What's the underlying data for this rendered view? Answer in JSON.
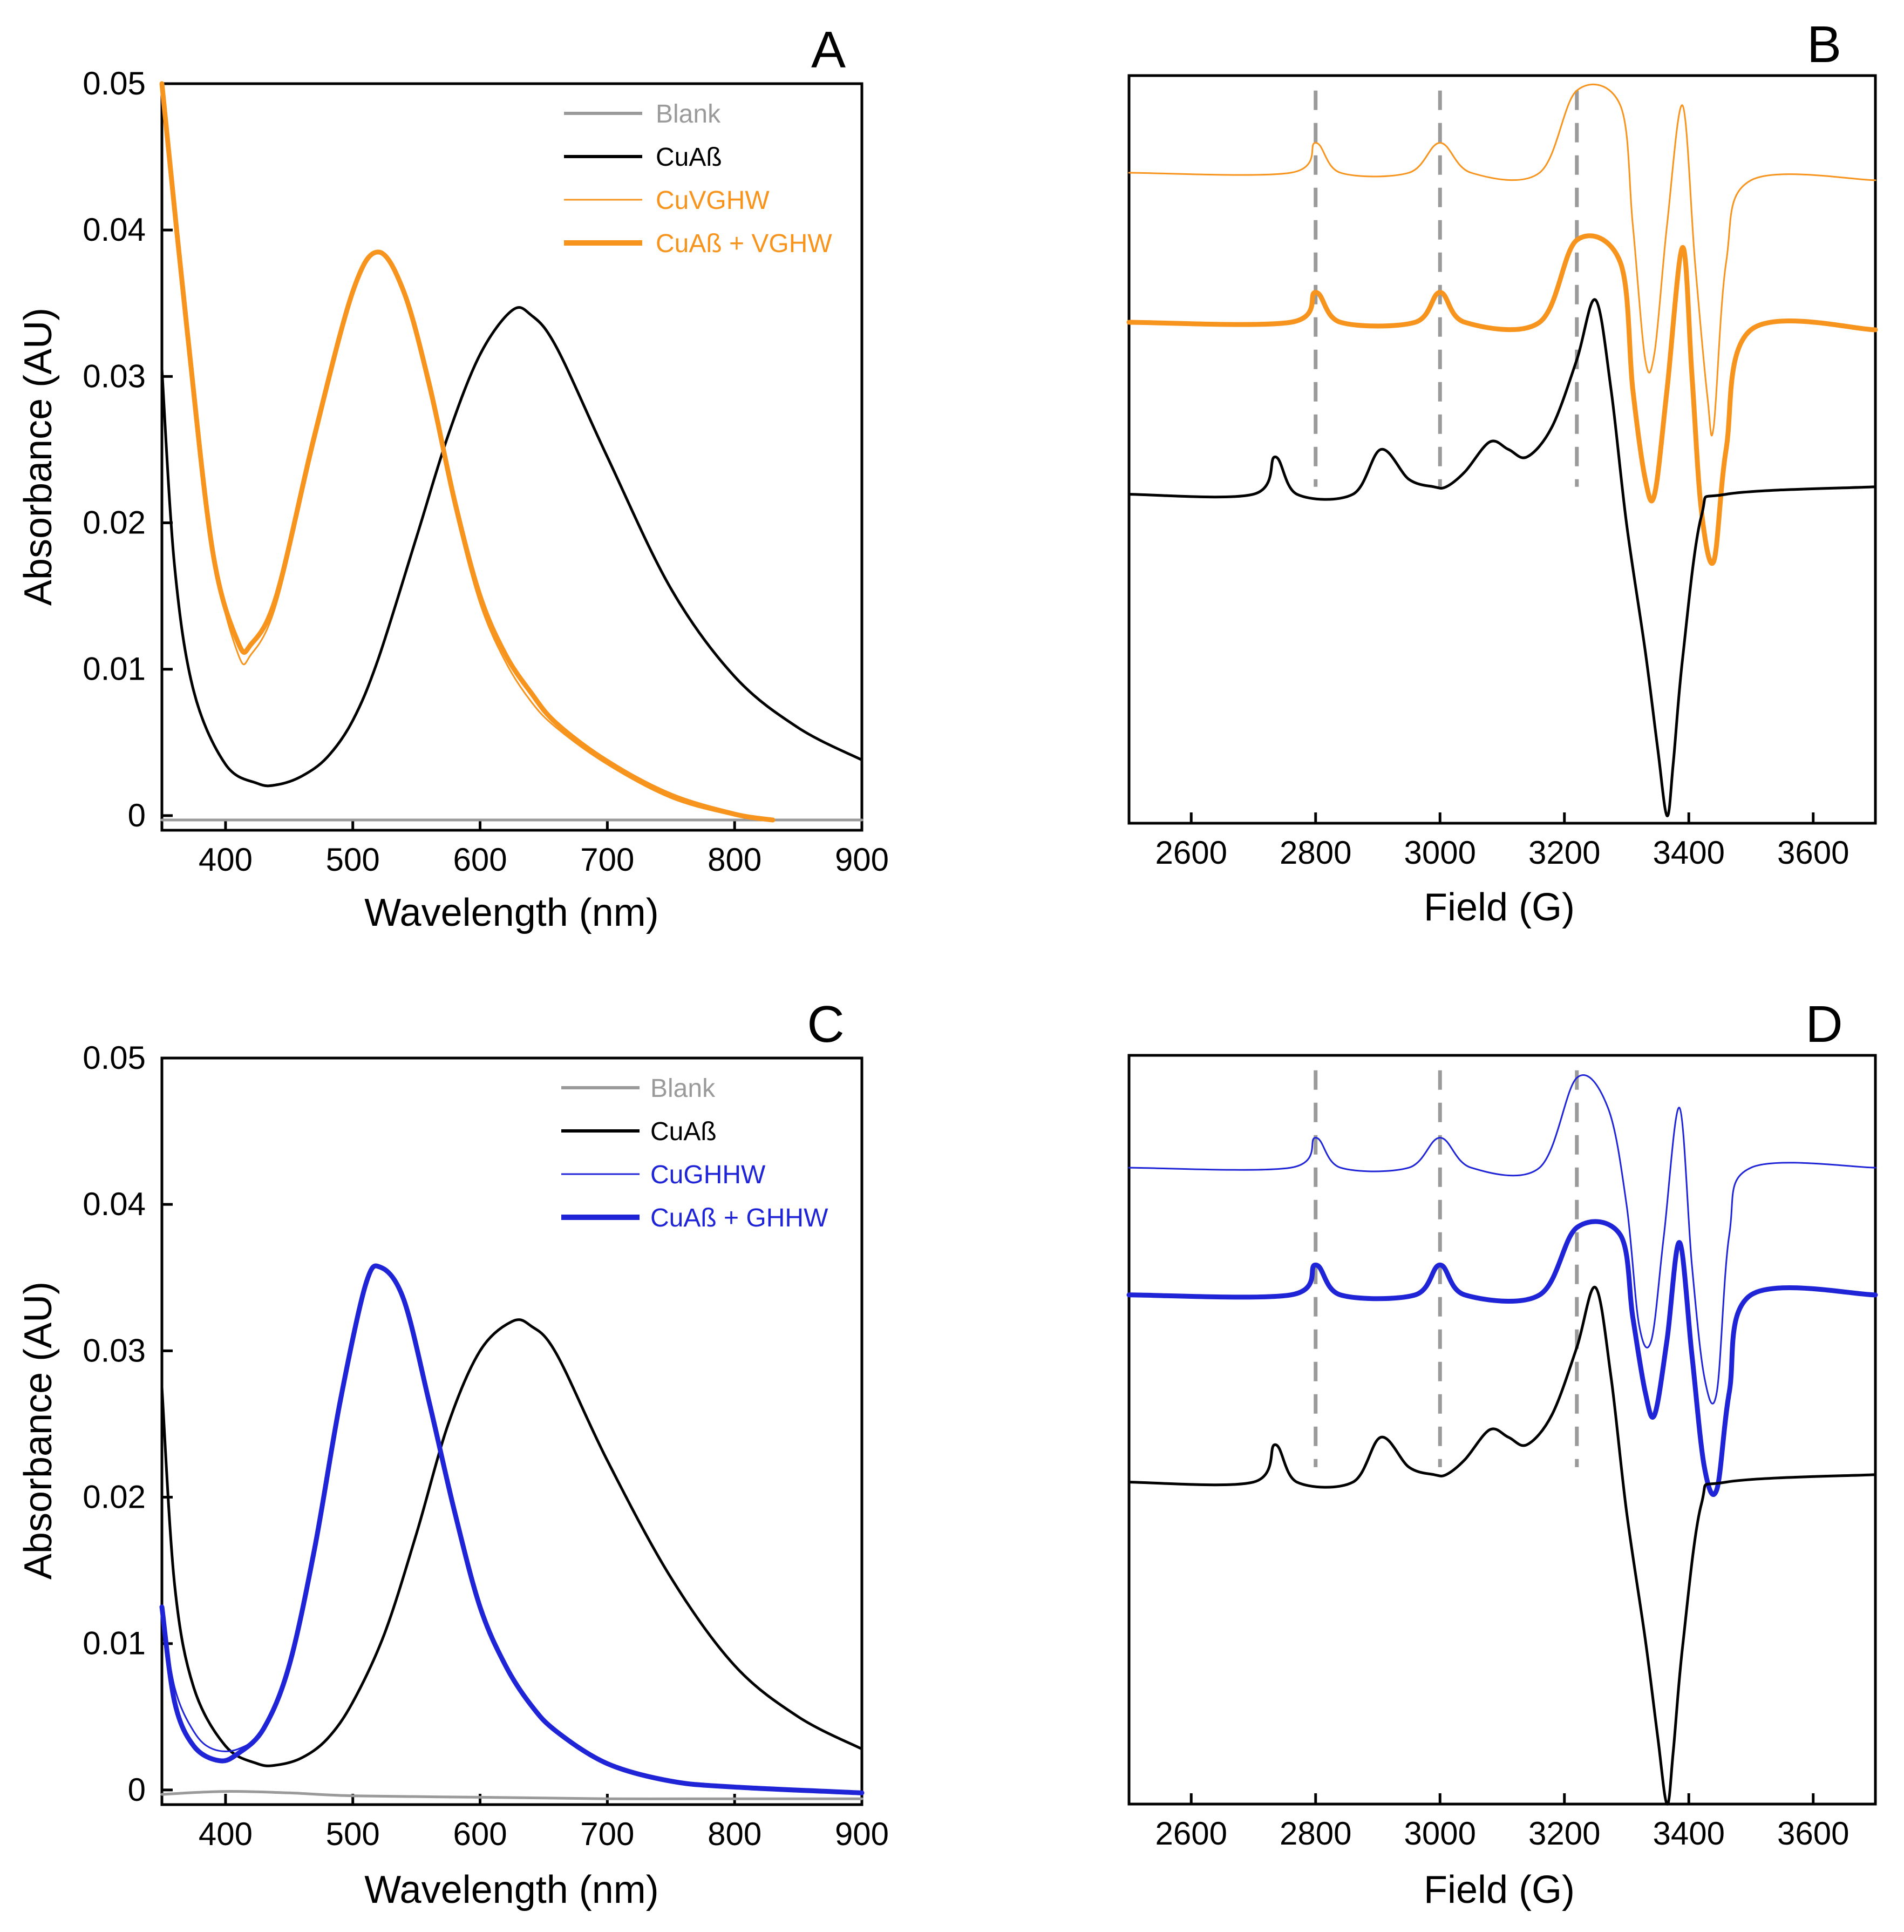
{
  "colors": {
    "blank": "#9a9a9a",
    "cuab": "#000000",
    "orange": "#f7941d",
    "blue": "#1f25d6",
    "dashed": "#9a9a9a"
  },
  "chart_data": [
    {
      "id": "A",
      "type": "line",
      "panel_label": "A",
      "xlabel": "Wavelength (nm)",
      "ylabel": "Absorbance (AU)",
      "xlim": [
        350,
        900
      ],
      "ylim": [
        -0.001,
        0.05
      ],
      "xticks": [
        400,
        500,
        600,
        700,
        800,
        900
      ],
      "yticks": [
        0,
        0.01,
        0.02,
        0.03,
        0.04,
        0.05
      ],
      "ytick_labels": [
        "0",
        "0.01",
        "0.02",
        "0.03",
        "0.04",
        "0.05"
      ],
      "legend": [
        "Blank",
        "CuAß",
        "CuVGHW",
        "CuAß + VGHW"
      ],
      "series": [
        {
          "name": "Blank",
          "color_key": "blank",
          "width": 5,
          "x": [
            350,
            400,
            500,
            600,
            700,
            800,
            900
          ],
          "y": [
            -0.0003,
            -0.0003,
            -0.0003,
            -0.0003,
            -0.0003,
            -0.0003,
            -0.0003
          ]
        },
        {
          "name": "CuAß",
          "color_key": "cuab",
          "width": 5,
          "x": [
            350,
            360,
            375,
            400,
            425,
            440,
            460,
            480,
            500,
            520,
            550,
            575,
            600,
            625,
            640,
            660,
            700,
            750,
            800,
            850,
            900
          ],
          "y": [
            0.0305,
            0.017,
            0.0085,
            0.0035,
            0.0022,
            0.0021,
            0.0027,
            0.004,
            0.0065,
            0.0107,
            0.019,
            0.026,
            0.0315,
            0.0345,
            0.0342,
            0.032,
            0.0245,
            0.0155,
            0.0095,
            0.006,
            0.0038
          ]
        },
        {
          "name": "CuVGHW",
          "color_key": "orange",
          "width": 3,
          "x": [
            350,
            370,
            390,
            410,
            420,
            440,
            470,
            500,
            520,
            540,
            560,
            580,
            600,
            620,
            640,
            660,
            700,
            750,
            800,
            830
          ],
          "y": [
            0.05,
            0.033,
            0.018,
            0.011,
            0.011,
            0.0145,
            0.0255,
            0.0355,
            0.0384,
            0.0355,
            0.029,
            0.021,
            0.0145,
            0.0105,
            0.0078,
            0.006,
            0.0035,
            0.0012,
            0.0,
            -0.0003
          ]
        },
        {
          "name": "CuAß + VGHW",
          "color_key": "orange",
          "width": 9,
          "x": [
            350,
            370,
            390,
            410,
            420,
            440,
            470,
            500,
            520,
            540,
            560,
            580,
            600,
            620,
            640,
            660,
            700,
            750,
            800,
            830
          ],
          "y": [
            0.05,
            0.033,
            0.018,
            0.0118,
            0.0117,
            0.015,
            0.026,
            0.0358,
            0.0385,
            0.0358,
            0.0295,
            0.0215,
            0.015,
            0.011,
            0.0084,
            0.0063,
            0.0037,
            0.0014,
            0.0001,
            -0.0003
          ]
        }
      ]
    },
    {
      "id": "B",
      "type": "line",
      "panel_label": "B",
      "xlabel": "Field (G)",
      "ylabel": "",
      "xlim": [
        2500,
        3700
      ],
      "ylim": [
        0,
        100
      ],
      "xticks": [
        2600,
        2800,
        3000,
        3200,
        3400,
        3600
      ],
      "ytick_labels": [],
      "dashed_lines_x": [
        2800,
        3000,
        3220
      ],
      "series": [
        {
          "name": "CuVGHW",
          "color_key": "orange",
          "width": 3,
          "x": [
            2500,
            2760,
            2800,
            2840,
            2950,
            3000,
            3050,
            3160,
            3220,
            3290,
            3310,
            3330,
            3345,
            3365,
            3390,
            3410,
            3430,
            3440,
            3460,
            3500,
            3700
          ],
          "y": [
            87,
            87,
            91,
            87,
            87,
            91,
            87,
            87,
            98,
            96,
            80,
            62,
            63,
            80,
            96,
            75,
            57,
            53,
            75,
            86,
            86
          ]
        },
        {
          "name": "CuAß + VGHW",
          "color_key": "orange",
          "width": 9,
          "x": [
            2500,
            2760,
            2800,
            2840,
            2960,
            3000,
            3040,
            3160,
            3220,
            3290,
            3310,
            3330,
            3345,
            3365,
            3390,
            3405,
            3420,
            3440,
            3460,
            3500,
            3700
          ],
          "y": [
            67,
            67,
            71,
            67,
            67,
            71,
            67,
            67,
            78,
            75,
            58,
            46,
            44,
            58,
            77,
            60,
            42,
            35,
            50,
            66,
            66
          ]
        },
        {
          "name": "CuAß",
          "color_key": "cuab",
          "width": 5,
          "x": [
            2500,
            2700,
            2735,
            2770,
            2860,
            2905,
            2950,
            2990,
            3010,
            3040,
            3080,
            3110,
            3140,
            3180,
            3220,
            3250,
            3275,
            3300,
            3330,
            3350,
            3365,
            3375,
            3390,
            3420,
            3460,
            3700
          ],
          "y": [
            44,
            44,
            49,
            44,
            44,
            50,
            46,
            45,
            45,
            47,
            51,
            50,
            49,
            53,
            62,
            70,
            58,
            40,
            23,
            10,
            1,
            8,
            22,
            41,
            44,
            45
          ]
        }
      ]
    },
    {
      "id": "C",
      "type": "line",
      "panel_label": "C",
      "xlabel": "Wavelength (nm)",
      "ylabel": "Absorbance (AU)",
      "xlim": [
        350,
        900
      ],
      "ylim": [
        -0.001,
        0.05
      ],
      "xticks": [
        400,
        500,
        600,
        700,
        800,
        900
      ],
      "yticks": [
        0,
        0.01,
        0.02,
        0.03,
        0.04,
        0.05
      ],
      "ytick_labels": [
        "0",
        "0.01",
        "0.02",
        "0.03",
        "0.04",
        "0.05"
      ],
      "legend": [
        "Blank",
        "CuAß",
        "CuGHHW",
        "CuAß + GHHW"
      ],
      "series": [
        {
          "name": "Blank",
          "color_key": "blank",
          "width": 5,
          "x": [
            350,
            400,
            450,
            500,
            600,
            700,
            800,
            900
          ],
          "y": [
            -0.0003,
            -0.0001,
            -0.0002,
            -0.0004,
            -0.0005,
            -0.0006,
            -0.0006,
            -0.0006
          ]
        },
        {
          "name": "CuAß",
          "color_key": "cuab",
          "width": 5,
          "x": [
            350,
            360,
            375,
            400,
            425,
            440,
            460,
            480,
            500,
            525,
            550,
            575,
            600,
            625,
            640,
            660,
            700,
            750,
            800,
            850,
            900
          ],
          "y": [
            0.0275,
            0.014,
            0.007,
            0.003,
            0.0018,
            0.0017,
            0.0022,
            0.0035,
            0.006,
            0.0107,
            0.0175,
            0.025,
            0.03,
            0.032,
            0.0317,
            0.0298,
            0.0225,
            0.0145,
            0.0085,
            0.005,
            0.0028
          ]
        },
        {
          "name": "CuGHHW",
          "color_key": "blue",
          "width": 3,
          "x": [
            350,
            360,
            375,
            390,
            410,
            430,
            450,
            470,
            490,
            510,
            522,
            540,
            560,
            580,
            600,
            620,
            640,
            660,
            700,
            750,
            800,
            900
          ],
          "y": [
            0.0125,
            0.007,
            0.004,
            0.0028,
            0.0028,
            0.0042,
            0.0085,
            0.0165,
            0.0265,
            0.0345,
            0.0357,
            0.0335,
            0.0265,
            0.019,
            0.0125,
            0.0085,
            0.0058,
            0.004,
            0.0018,
            0.0006,
            0.0002,
            -0.0003
          ]
        },
        {
          "name": "CuAß + GHHW",
          "color_key": "blue",
          "width": 9,
          "x": [
            350,
            360,
            375,
            395,
            410,
            430,
            450,
            470,
            490,
            510,
            522,
            540,
            560,
            580,
            600,
            620,
            640,
            660,
            700,
            750,
            800,
            900
          ],
          "y": [
            0.0125,
            0.006,
            0.003,
            0.002,
            0.0025,
            0.0042,
            0.0085,
            0.0165,
            0.0265,
            0.0345,
            0.0357,
            0.0335,
            0.0265,
            0.019,
            0.0125,
            0.0085,
            0.0058,
            0.004,
            0.0018,
            0.0006,
            0.0002,
            -0.0002
          ]
        }
      ]
    },
    {
      "id": "D",
      "type": "line",
      "panel_label": "D",
      "xlabel": "Field (G)",
      "ylabel": "",
      "xlim": [
        2500,
        3700
      ],
      "ylim": [
        0,
        100
      ],
      "xticks": [
        2600,
        2800,
        3000,
        3200,
        3400,
        3600
      ],
      "ytick_labels": [],
      "dashed_lines_x": [
        2800,
        3000,
        3220
      ],
      "series": [
        {
          "name": "CuGHHW",
          "color_key": "blue",
          "width": 3,
          "x": [
            2500,
            2760,
            2800,
            2840,
            2950,
            3000,
            3050,
            3160,
            3220,
            3270,
            3300,
            3320,
            3340,
            3360,
            3385,
            3405,
            3425,
            3445,
            3465,
            3500,
            3700
          ],
          "y": [
            85,
            85,
            89,
            85,
            85,
            89,
            85,
            85,
            97,
            93,
            80,
            64,
            62,
            76,
            93,
            72,
            57,
            55,
            76,
            85,
            85
          ]
        },
        {
          "name": "CuAß + GHHW",
          "color_key": "blue",
          "width": 9,
          "x": [
            2500,
            2760,
            2800,
            2840,
            2960,
            3000,
            3040,
            3160,
            3220,
            3290,
            3310,
            3330,
            3345,
            3365,
            3385,
            3405,
            3425,
            3445,
            3465,
            3500,
            3700
          ],
          "y": [
            68,
            68,
            72,
            68,
            68,
            72,
            68,
            68,
            77,
            76,
            65,
            55,
            52,
            62,
            75,
            60,
            45,
            42,
            55,
            68,
            68
          ]
        },
        {
          "name": "CuAß",
          "color_key": "cuab",
          "width": 5,
          "x": [
            2500,
            2700,
            2735,
            2770,
            2860,
            2905,
            2950,
            2990,
            3010,
            3040,
            3080,
            3110,
            3140,
            3180,
            3220,
            3250,
            3275,
            3300,
            3330,
            3350,
            3365,
            3375,
            3390,
            3420,
            3460,
            3700
          ],
          "y": [
            43,
            43,
            48,
            43,
            43,
            49,
            45,
            44,
            44,
            46,
            50,
            49,
            48,
            52,
            61,
            69,
            57,
            39,
            22,
            9,
            0,
            7,
            21,
            40,
            43,
            44
          ]
        }
      ]
    }
  ]
}
